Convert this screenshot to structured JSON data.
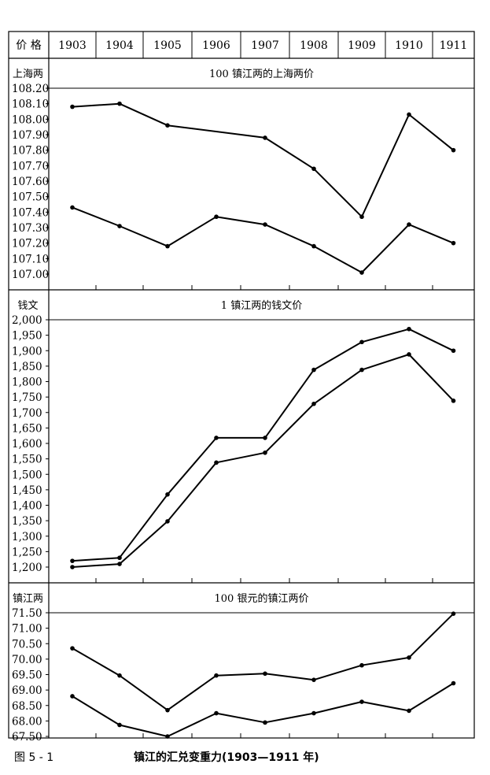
{
  "chart_data": [
    {
      "type": "line",
      "header_label": "价 格",
      "unit_label": "上海两",
      "title": "100 镇江两的上海两价",
      "categories": [
        "1903",
        "1904",
        "1905",
        "1906",
        "1907",
        "1908",
        "1909",
        "1910",
        "1911"
      ],
      "x": [
        1903.5,
        1904.5,
        1905.5,
        1906.5,
        1907.5,
        1908.5,
        1909.5,
        1910.5,
        1911.5
      ],
      "ylim": [
        107.0,
        108.2
      ],
      "yticks": [
        "107.00",
        "107.10",
        "107.20",
        "107.30",
        "107.40",
        "107.50",
        "107.60",
        "107.70",
        "107.80",
        "107.90",
        "108.00",
        "108.10",
        "108.20"
      ],
      "series": [
        {
          "values": [
            108.08,
            108.1,
            107.96,
            null,
            107.88,
            107.68,
            107.37,
            108.03,
            107.8
          ]
        },
        {
          "values": [
            107.43,
            107.31,
            107.18,
            107.37,
            107.32,
            107.18,
            107.01,
            107.32,
            107.2
          ]
        }
      ]
    },
    {
      "type": "line",
      "unit_label": "钱文",
      "title": "1 镇江两的钱文价",
      "x": [
        1903.5,
        1904.5,
        1905.5,
        1906.5,
        1907.5,
        1908.5,
        1909.5,
        1910.5,
        1911.5
      ],
      "ylim": [
        1200,
        2000
      ],
      "yticks": [
        "1,200",
        "1,250",
        "1,300",
        "1,350",
        "1,400",
        "1,450",
        "1,500",
        "1,550",
        "1,600",
        "1,650",
        "1,700",
        "1,750",
        "1,800",
        "1,850",
        "1,900",
        "1,950",
        "2,000"
      ],
      "series": [
        {
          "values": [
            1220,
            1230,
            1435,
            1618,
            1618,
            1838,
            1928,
            1970,
            1900
          ]
        },
        {
          "values": [
            1200,
            1210,
            1348,
            1538,
            1570,
            1728,
            1838,
            1888,
            1738
          ]
        }
      ]
    },
    {
      "type": "line",
      "unit_label": "镇江两",
      "title": "100 银元的镇江两价",
      "x": [
        1903.5,
        1904.5,
        1905.5,
        1906.5,
        1907.5,
        1908.5,
        1909.5,
        1910.5,
        1911.5
      ],
      "ylim": [
        67.5,
        71.5
      ],
      "yticks": [
        "67.50",
        "68.00",
        "68.50",
        "69.00",
        "69.50",
        "70.00",
        "70.50",
        "71.00",
        "71.50"
      ],
      "series": [
        {
          "values": [
            70.35,
            69.47,
            68.35,
            69.47,
            69.53,
            69.33,
            69.8,
            70.05,
            71.47
          ]
        },
        {
          "values": [
            68.8,
            67.87,
            67.5,
            68.25,
            67.95,
            68.25,
            68.62,
            68.33,
            69.22
          ]
        }
      ]
    }
  ],
  "caption": {
    "figure_number": "图 5 - 1",
    "title": "镇江的汇兑变重力(1903—1911 年)"
  }
}
